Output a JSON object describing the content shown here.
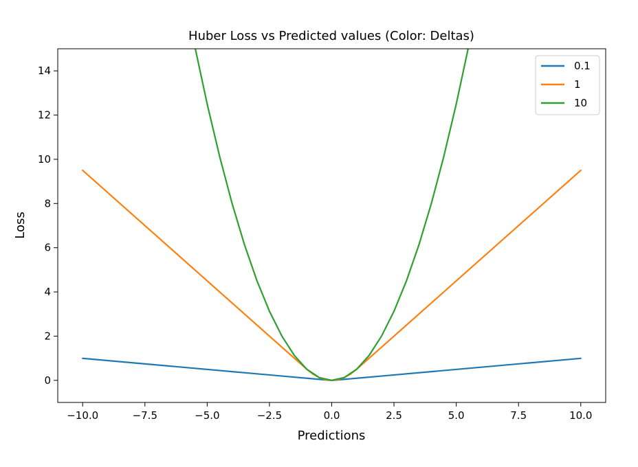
{
  "chart_data": {
    "type": "line",
    "title": "Huber Loss vs Predicted values (Color: Deltas)",
    "xlabel": "Predictions",
    "ylabel": "Loss",
    "xlim": [
      -11.0,
      11.0
    ],
    "ylim": [
      -1.0,
      15.0
    ],
    "xticks": [
      -10.0,
      -7.5,
      -5.0,
      -2.5,
      0.0,
      2.5,
      5.0,
      7.5,
      10.0
    ],
    "xtick_labels": [
      "−10.0",
      "−7.5",
      "−5.0",
      "−2.5",
      "0.0",
      "2.5",
      "5.0",
      "7.5",
      "10.0"
    ],
    "yticks": [
      0,
      2,
      4,
      6,
      8,
      10,
      12,
      14
    ],
    "ytick_labels": [
      "0",
      "2",
      "4",
      "6",
      "8",
      "10",
      "12",
      "14"
    ],
    "grid": false,
    "legend_position": "top-right",
    "series": [
      {
        "name": "0.1",
        "color": "#1f77b4",
        "x": [
          -10,
          -8,
          -6,
          -4,
          -2,
          -1,
          -0.5,
          -0.1,
          0,
          0.1,
          0.5,
          1,
          2,
          4,
          6,
          8,
          10
        ],
        "y": [
          0.995,
          0.795,
          0.595,
          0.395,
          0.195,
          0.095,
          0.045,
          0.005,
          0.0,
          0.005,
          0.045,
          0.095,
          0.195,
          0.395,
          0.595,
          0.795,
          0.995
        ]
      },
      {
        "name": "1",
        "color": "#ff7f0e",
        "x": [
          -10,
          -8,
          -6,
          -4,
          -2,
          -1,
          -0.75,
          -0.5,
          -0.25,
          0,
          0.25,
          0.5,
          0.75,
          1,
          2,
          4,
          6,
          8,
          10
        ],
        "y": [
          9.5,
          7.5,
          5.5,
          3.5,
          1.5,
          0.5,
          0.28,
          0.125,
          0.031,
          0.0,
          0.031,
          0.125,
          0.28,
          0.5,
          1.5,
          3.5,
          5.5,
          7.5,
          9.5
        ]
      },
      {
        "name": "10",
        "color": "#2ca02c",
        "x": [
          -5.5,
          -5,
          -4.5,
          -4,
          -3.5,
          -3,
          -2.5,
          -2,
          -1.5,
          -1,
          -0.5,
          0,
          0.5,
          1,
          1.5,
          2,
          2.5,
          3,
          3.5,
          4,
          4.5,
          5,
          5.5
        ],
        "y": [
          15.125,
          12.5,
          10.125,
          8.0,
          6.125,
          4.5,
          3.125,
          2.0,
          1.125,
          0.5,
          0.125,
          0.0,
          0.125,
          0.5,
          1.125,
          2.0,
          3.125,
          4.5,
          6.125,
          8.0,
          10.125,
          12.5,
          15.125
        ]
      }
    ]
  }
}
